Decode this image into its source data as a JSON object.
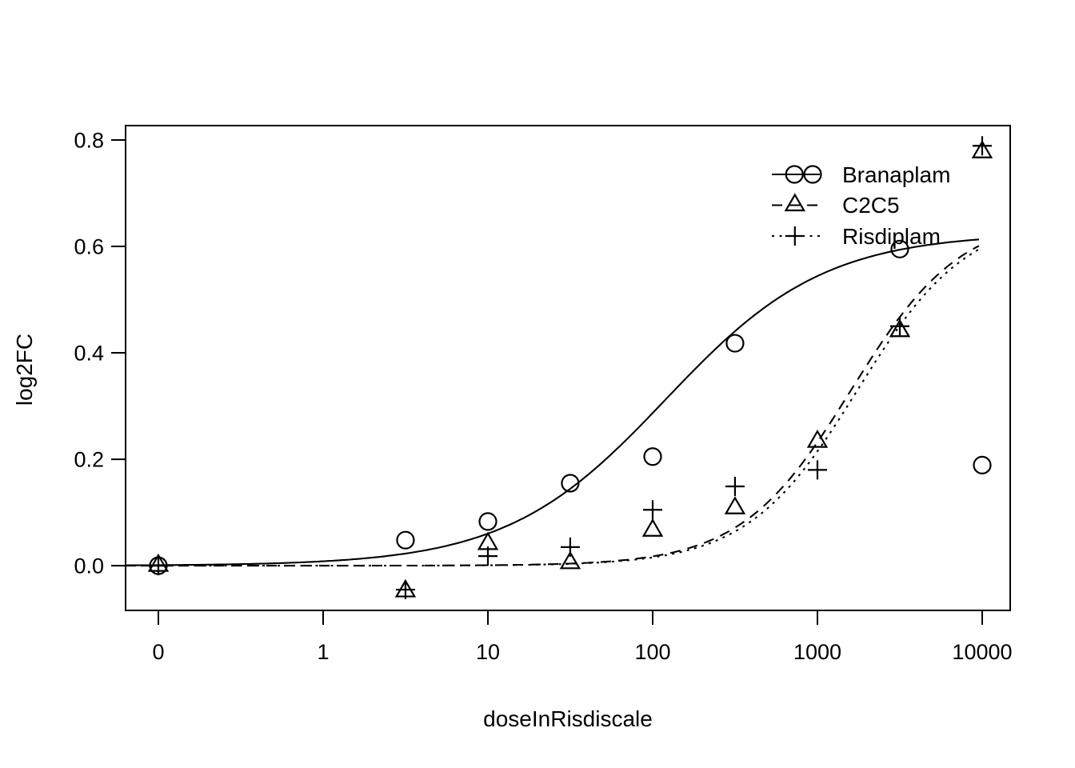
{
  "figure_title": "",
  "colors": {
    "foreground": "#000000",
    "background": "#ffffff"
  },
  "chart_data": {
    "type": "scatter",
    "subtype": "dose-response scatter with logistic fit curves (R base plot style)",
    "title": "",
    "xlabel": "doseInRisdiscale",
    "ylabel": "log2FC",
    "x_scale": "log10, with dose 0 plotted at the 10^-1 position",
    "xlim_log10": [
      -1.199,
      4.17
    ],
    "ylim": [
      -0.084,
      0.827
    ],
    "grid": false,
    "x_ticks": [
      {
        "label": "0",
        "log10": -1
      },
      {
        "label": "1",
        "log10": 0
      },
      {
        "label": "10",
        "log10": 1
      },
      {
        "label": "100",
        "log10": 2
      },
      {
        "label": "1000",
        "log10": 3
      },
      {
        "label": "10000",
        "log10": 4
      }
    ],
    "y_ticks": [
      {
        "label": "0.0",
        "value": 0.0
      },
      {
        "label": "0.2",
        "value": 0.2
      },
      {
        "label": "0.4",
        "value": 0.4
      },
      {
        "label": "0.6",
        "value": 0.6
      },
      {
        "label": "0.8",
        "value": 0.8
      }
    ],
    "doses": [
      0,
      3.16,
      10,
      31.6,
      100,
      316,
      1000,
      3162,
      10000
    ],
    "series": [
      {
        "name": "Branaplam",
        "marker": "circle",
        "line": "solid",
        "values": [
          0.0,
          0.048,
          0.083,
          0.155,
          0.205,
          0.418,
          null,
          0.595,
          0.189
        ],
        "fit_curve": {
          "model": "logistic",
          "top": 0.625,
          "ec50": 120,
          "hill": 0.9
        },
        "legend_key_marker_fracs": [
          0.47,
          0.85
        ]
      },
      {
        "name": "C2C5",
        "marker": "triangle",
        "line": "dashed",
        "values": [
          0.0,
          -0.048,
          0.041,
          0.005,
          0.066,
          0.108,
          0.233,
          0.441,
          0.777
        ],
        "fit_curve": {
          "model": "logistic",
          "top": 0.66,
          "ec50": 1600,
          "hill": 1.3
        },
        "legend_key_marker_fracs": [
          0.48
        ]
      },
      {
        "name": "Risdiplam",
        "marker": "plus",
        "line": "dotted",
        "values": [
          0.0,
          -0.045,
          0.018,
          0.035,
          0.105,
          0.149,
          0.18,
          0.45,
          0.789
        ],
        "fit_curve": {
          "model": "logistic",
          "top": 0.66,
          "ec50": 1750,
          "hill": 1.3
        },
        "legend_key_marker_fracs": [
          0.48
        ]
      }
    ],
    "curve_log10_range": [
      -1.199,
      3.98
    ],
    "legend": {
      "position": "top-right-inside",
      "items": [
        "Branaplam",
        "C2C5",
        "Risdiplam"
      ]
    }
  }
}
